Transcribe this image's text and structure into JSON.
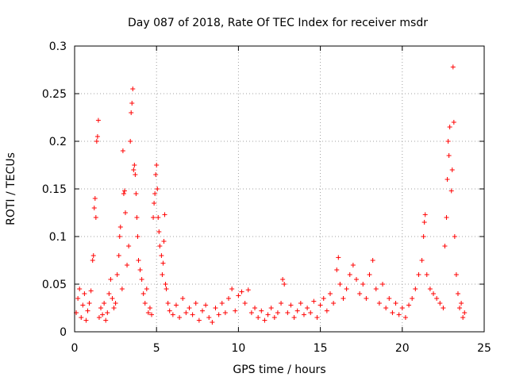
{
  "chart_data": {
    "type": "scatter",
    "title": "Day 087 of 2018, Rate Of TEC Index for receiver msdr",
    "xlabel": "GPS time / hours",
    "ylabel": "ROTI / TECUs",
    "xlim": [
      0,
      25
    ],
    "ylim": [
      0,
      0.3
    ],
    "x_ticks": [
      0,
      5,
      10,
      15,
      20,
      25
    ],
    "x_tick_labels": [
      "0",
      "5",
      "10",
      "15",
      "20",
      "25"
    ],
    "y_ticks": [
      0,
      0.05,
      0.1,
      0.15,
      0.2,
      0.25,
      0.3
    ],
    "y_tick_labels": [
      "0",
      "0.05",
      "0.1",
      "0.15",
      "0.2",
      "0.25",
      "0.3"
    ],
    "grid": true,
    "marker": "+",
    "color": "#ff0000",
    "series": [
      {
        "name": "ROTI",
        "points": [
          [
            0.1,
            0.02
          ],
          [
            0.2,
            0.035
          ],
          [
            0.3,
            0.045
          ],
          [
            0.4,
            0.015
          ],
          [
            0.5,
            0.028
          ],
          [
            0.6,
            0.04
          ],
          [
            0.7,
            0.012
          ],
          [
            0.8,
            0.022
          ],
          [
            0.9,
            0.03
          ],
          [
            1.0,
            0.043
          ],
          [
            1.1,
            0.075
          ],
          [
            1.15,
            0.08
          ],
          [
            1.2,
            0.13
          ],
          [
            1.25,
            0.14
          ],
          [
            1.3,
            0.12
          ],
          [
            1.35,
            0.2
          ],
          [
            1.4,
            0.205
          ],
          [
            1.45,
            0.222
          ],
          [
            1.5,
            0.015
          ],
          [
            1.6,
            0.025
          ],
          [
            1.7,
            0.018
          ],
          [
            1.8,
            0.03
          ],
          [
            1.9,
            0.012
          ],
          [
            2.0,
            0.02
          ],
          [
            2.1,
            0.04
          ],
          [
            2.2,
            0.055
          ],
          [
            2.3,
            0.035
          ],
          [
            2.4,
            0.025
          ],
          [
            2.5,
            0.03
          ],
          [
            2.6,
            0.06
          ],
          [
            2.7,
            0.08
          ],
          [
            2.75,
            0.1
          ],
          [
            2.8,
            0.11
          ],
          [
            2.9,
            0.045
          ],
          [
            2.95,
            0.19
          ],
          [
            3.0,
            0.145
          ],
          [
            3.05,
            0.148
          ],
          [
            3.1,
            0.125
          ],
          [
            3.2,
            0.07
          ],
          [
            3.3,
            0.09
          ],
          [
            3.4,
            0.2
          ],
          [
            3.45,
            0.23
          ],
          [
            3.5,
            0.24
          ],
          [
            3.55,
            0.255
          ],
          [
            3.6,
            0.17
          ],
          [
            3.65,
            0.175
          ],
          [
            3.7,
            0.165
          ],
          [
            3.75,
            0.145
          ],
          [
            3.8,
            0.12
          ],
          [
            3.85,
            0.1
          ],
          [
            3.9,
            0.075
          ],
          [
            4.0,
            0.065
          ],
          [
            4.1,
            0.055
          ],
          [
            4.2,
            0.04
          ],
          [
            4.3,
            0.03
          ],
          [
            4.4,
            0.045
          ],
          [
            4.5,
            0.02
          ],
          [
            4.6,
            0.025
          ],
          [
            4.7,
            0.018
          ],
          [
            4.8,
            0.12
          ],
          [
            4.85,
            0.135
          ],
          [
            4.9,
            0.145
          ],
          [
            4.95,
            0.165
          ],
          [
            5.0,
            0.175
          ],
          [
            5.05,
            0.15
          ],
          [
            5.1,
            0.12
          ],
          [
            5.15,
            0.105
          ],
          [
            5.2,
            0.09
          ],
          [
            5.3,
            0.08
          ],
          [
            5.35,
            0.06
          ],
          [
            5.4,
            0.072
          ],
          [
            5.45,
            0.095
          ],
          [
            5.5,
            0.123
          ],
          [
            5.55,
            0.05
          ],
          [
            5.6,
            0.045
          ],
          [
            5.7,
            0.03
          ],
          [
            5.8,
            0.022
          ],
          [
            6.0,
            0.018
          ],
          [
            6.2,
            0.028
          ],
          [
            6.4,
            0.015
          ],
          [
            6.6,
            0.035
          ],
          [
            6.8,
            0.02
          ],
          [
            7.0,
            0.025
          ],
          [
            7.2,
            0.018
          ],
          [
            7.4,
            0.03
          ],
          [
            7.6,
            0.012
          ],
          [
            7.8,
            0.022
          ],
          [
            8.0,
            0.028
          ],
          [
            8.2,
            0.015
          ],
          [
            8.4,
            0.01
          ],
          [
            8.6,
            0.025
          ],
          [
            8.8,
            0.018
          ],
          [
            9.0,
            0.03
          ],
          [
            9.2,
            0.02
          ],
          [
            9.4,
            0.035
          ],
          [
            9.6,
            0.045
          ],
          [
            9.8,
            0.022
          ],
          [
            10.0,
            0.038
          ],
          [
            10.2,
            0.042
          ],
          [
            10.4,
            0.03
          ],
          [
            10.6,
            0.044
          ],
          [
            10.8,
            0.02
          ],
          [
            11.0,
            0.025
          ],
          [
            11.2,
            0.015
          ],
          [
            11.4,
            0.022
          ],
          [
            11.6,
            0.012
          ],
          [
            11.8,
            0.018
          ],
          [
            12.0,
            0.025
          ],
          [
            12.2,
            0.015
          ],
          [
            12.4,
            0.02
          ],
          [
            12.6,
            0.03
          ],
          [
            12.7,
            0.055
          ],
          [
            12.8,
            0.05
          ],
          [
            13.0,
            0.02
          ],
          [
            13.2,
            0.028
          ],
          [
            13.4,
            0.015
          ],
          [
            13.6,
            0.022
          ],
          [
            13.8,
            0.03
          ],
          [
            14.0,
            0.018
          ],
          [
            14.2,
            0.025
          ],
          [
            14.4,
            0.02
          ],
          [
            14.6,
            0.032
          ],
          [
            14.8,
            0.015
          ],
          [
            15.0,
            0.028
          ],
          [
            15.2,
            0.035
          ],
          [
            15.4,
            0.022
          ],
          [
            15.6,
            0.04
          ],
          [
            15.8,
            0.03
          ],
          [
            16.0,
            0.065
          ],
          [
            16.1,
            0.078
          ],
          [
            16.2,
            0.05
          ],
          [
            16.4,
            0.035
          ],
          [
            16.6,
            0.045
          ],
          [
            16.8,
            0.06
          ],
          [
            17.0,
            0.07
          ],
          [
            17.2,
            0.055
          ],
          [
            17.4,
            0.04
          ],
          [
            17.6,
            0.05
          ],
          [
            17.8,
            0.035
          ],
          [
            18.0,
            0.06
          ],
          [
            18.2,
            0.075
          ],
          [
            18.4,
            0.045
          ],
          [
            18.6,
            0.03
          ],
          [
            18.8,
            0.05
          ],
          [
            19.0,
            0.025
          ],
          [
            19.2,
            0.035
          ],
          [
            19.4,
            0.02
          ],
          [
            19.6,
            0.03
          ],
          [
            19.8,
            0.018
          ],
          [
            20.0,
            0.025
          ],
          [
            20.2,
            0.015
          ],
          [
            20.4,
            0.028
          ],
          [
            20.6,
            0.035
          ],
          [
            20.8,
            0.045
          ],
          [
            21.0,
            0.06
          ],
          [
            21.2,
            0.075
          ],
          [
            21.3,
            0.1
          ],
          [
            21.35,
            0.115
          ],
          [
            21.4,
            0.123
          ],
          [
            21.5,
            0.06
          ],
          [
            21.7,
            0.045
          ],
          [
            21.9,
            0.04
          ],
          [
            22.1,
            0.035
          ],
          [
            22.3,
            0.03
          ],
          [
            22.5,
            0.025
          ],
          [
            22.6,
            0.09
          ],
          [
            22.7,
            0.12
          ],
          [
            22.75,
            0.16
          ],
          [
            22.8,
            0.2
          ],
          [
            22.85,
            0.185
          ],
          [
            22.9,
            0.215
          ],
          [
            23.0,
            0.148
          ],
          [
            23.05,
            0.17
          ],
          [
            23.1,
            0.278
          ],
          [
            23.15,
            0.22
          ],
          [
            23.2,
            0.1
          ],
          [
            23.3,
            0.06
          ],
          [
            23.4,
            0.04
          ],
          [
            23.5,
            0.025
          ],
          [
            23.6,
            0.03
          ],
          [
            23.7,
            0.015
          ],
          [
            23.8,
            0.02
          ]
        ]
      }
    ]
  }
}
